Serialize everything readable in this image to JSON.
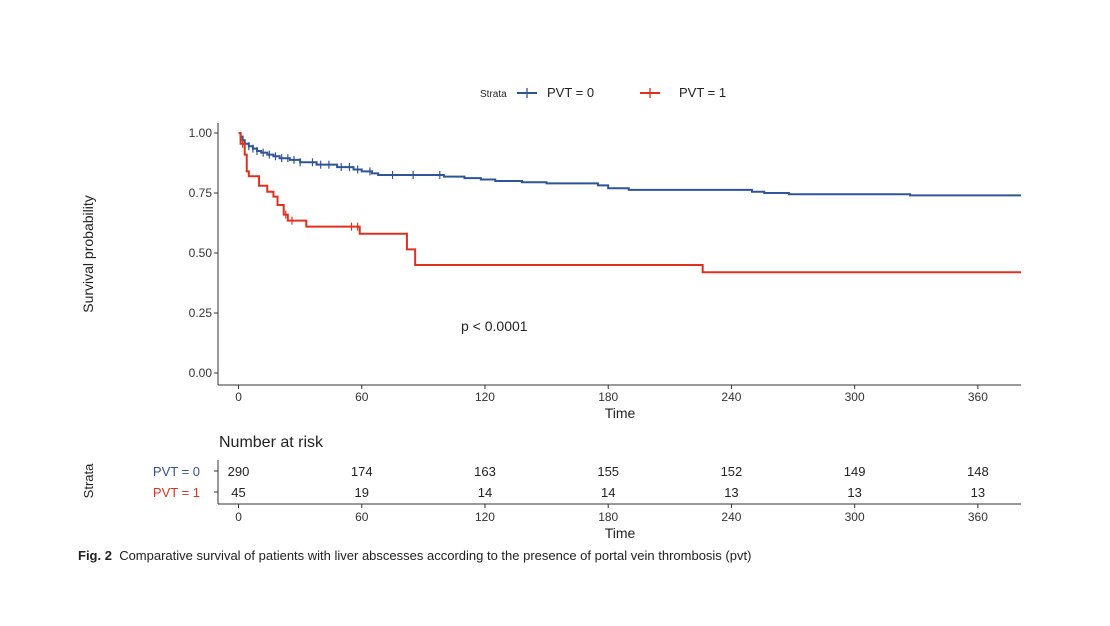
{
  "chart_data": {
    "type": "line",
    "subtype": "kaplan-meier",
    "xlabel": "Time",
    "ylabel": "Survival probability",
    "xlim": [
      -10,
      381
    ],
    "ylim": [
      0,
      1.0
    ],
    "x_ticks": [
      "0",
      "60",
      "120",
      "180",
      "240",
      "300",
      "360"
    ],
    "y_ticks": [
      "0.00",
      "0.25",
      "0.50",
      "0.75",
      "1.00"
    ],
    "legend": {
      "title": "Strata",
      "position": "top",
      "entries": [
        "PVT = 0",
        "PVT = 1"
      ]
    },
    "annotation": "p < 0.0001",
    "series": [
      {
        "name": "PVT = 0",
        "color": "#2f5597",
        "steps": [
          [
            0,
            1.0
          ],
          [
            1,
            0.985
          ],
          [
            2,
            0.97
          ],
          [
            3,
            0.955
          ],
          [
            5,
            0.945
          ],
          [
            7,
            0.935
          ],
          [
            9,
            0.925
          ],
          [
            11,
            0.918
          ],
          [
            14,
            0.91
          ],
          [
            17,
            0.903
          ],
          [
            20,
            0.895
          ],
          [
            25,
            0.888
          ],
          [
            30,
            0.878
          ],
          [
            38,
            0.868
          ],
          [
            48,
            0.858
          ],
          [
            56,
            0.848
          ],
          [
            60,
            0.84
          ],
          [
            65,
            0.832
          ],
          [
            68,
            0.825
          ],
          [
            100,
            0.818
          ],
          [
            110,
            0.812
          ],
          [
            118,
            0.806
          ],
          [
            125,
            0.8
          ],
          [
            138,
            0.795
          ],
          [
            150,
            0.79
          ],
          [
            175,
            0.782
          ],
          [
            180,
            0.77
          ],
          [
            190,
            0.763
          ],
          [
            250,
            0.755
          ],
          [
            256,
            0.75
          ],
          [
            268,
            0.745
          ],
          [
            327,
            0.74
          ]
        ],
        "end_x": 381,
        "censored": [
          5,
          7,
          9,
          12,
          15,
          18,
          21,
          24,
          27,
          30,
          36,
          40,
          44,
          50,
          54,
          58,
          64,
          75,
          85,
          98
        ]
      },
      {
        "name": "PVT = 1",
        "color": "#e0301e",
        "steps": [
          [
            0,
            1.0
          ],
          [
            1,
            0.955
          ],
          [
            3,
            0.91
          ],
          [
            4,
            0.84
          ],
          [
            5,
            0.82
          ],
          [
            10,
            0.78
          ],
          [
            14,
            0.755
          ],
          [
            17,
            0.735
          ],
          [
            19,
            0.7
          ],
          [
            22,
            0.66
          ],
          [
            24,
            0.635
          ],
          [
            33,
            0.61
          ],
          [
            59,
            0.58
          ],
          [
            82,
            0.515
          ],
          [
            86,
            0.45
          ],
          [
            226,
            0.42
          ]
        ],
        "end_x": 381,
        "censored": [
          2,
          23,
          26,
          55,
          58
        ]
      }
    ],
    "risk_table": {
      "title": "Number at risk",
      "y_label": "Strata",
      "x_label": "Time",
      "times": [
        "0",
        "60",
        "120",
        "180",
        "240",
        "300",
        "360"
      ],
      "rows": [
        {
          "name": "PVT = 0",
          "color": "#2f5597",
          "values": [
            "290",
            "174",
            "163",
            "155",
            "152",
            "149",
            "148"
          ]
        },
        {
          "name": "PVT = 1",
          "color": "#e0301e",
          "values": [
            "45",
            "19",
            "14",
            "14",
            "13",
            "13",
            "13"
          ]
        }
      ]
    }
  },
  "caption": {
    "label": "Fig. 2",
    "text": "Comparative survival of patients with liver abscesses according to the presence of portal vein thrombosis (pvt)"
  }
}
